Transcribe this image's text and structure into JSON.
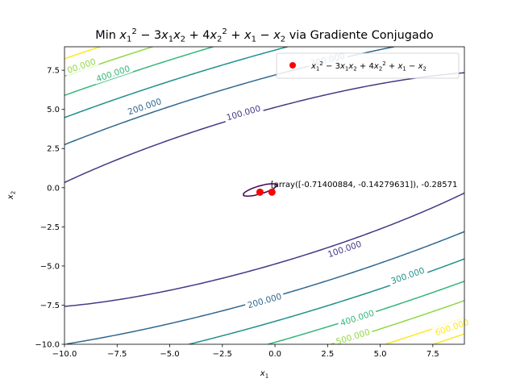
{
  "chart_data": {
    "type": "contour",
    "title_parts": [
      "Min ",
      "x",
      "1",
      "2",
      " − 3",
      "x",
      "1",
      "x",
      "2",
      " + 4",
      "x",
      "2",
      "2",
      " + ",
      "x",
      "1",
      " − ",
      "x",
      "2",
      " via Gradiente Conjugado"
    ],
    "xlabel": {
      "base": "x",
      "sub": "1"
    },
    "ylabel": {
      "base": "x",
      "sub": "2"
    },
    "xlim": [
      -10,
      9
    ],
    "ylim": [
      -10,
      9
    ],
    "xticks": [
      -10.0,
      -7.5,
      -5.0,
      -2.5,
      0.0,
      2.5,
      5.0,
      7.5
    ],
    "yticks": [
      -10.0,
      -7.5,
      -5.0,
      -2.5,
      0.0,
      2.5,
      5.0,
      7.5
    ],
    "xtick_labels": [
      "−10.0",
      "−7.5",
      "−5.0",
      "−2.5",
      "0.0",
      "2.5",
      "5.0",
      "7.5"
    ],
    "ytick_labels": [
      "−10.0",
      "−7.5",
      "−5.0",
      "−2.5",
      "0.0",
      "2.5",
      "5.0",
      "7.5"
    ],
    "function": {
      "a": 1,
      "b": -3,
      "c": 4,
      "d": 1,
      "e": -1
    },
    "levels": [
      0,
      100,
      200,
      300,
      400,
      500,
      600,
      700
    ],
    "level_colors": [
      "#440154",
      "#443983",
      "#31688e",
      "#21918c",
      "#35b779",
      "#90d743",
      "#fde725",
      "#fde725"
    ],
    "contour_labels": [
      {
        "text": "100.000",
        "x": -1.5,
        "y": 4.8
      },
      {
        "text": "200.000",
        "x": -6.2,
        "y": 5.2
      },
      {
        "text": "300.000",
        "x": 2.5,
        "y": 8.2
      },
      {
        "text": "400.000",
        "x": -7.7,
        "y": 7.3
      },
      {
        "text": "00.000",
        "x": -9.2,
        "y": 7.8
      },
      {
        "text": "100.000",
        "x": 3.3,
        "y": -3.9
      },
      {
        "text": "200.000",
        "x": -0.5,
        "y": -7.2
      },
      {
        "text": "300.000",
        "x": 6.3,
        "y": -5.6
      },
      {
        "text": "400.000",
        "x": 3.9,
        "y": -8.3
      },
      {
        "text": "500.000",
        "x": 3.7,
        "y": -9.5
      },
      {
        "text": "600.000",
        "x": 8.4,
        "y": -8.9
      }
    ],
    "points": [
      {
        "x": -0.714,
        "y": -0.2857
      },
      {
        "x": -0.143,
        "y": -0.2857
      }
    ],
    "point_color": "#ff0000",
    "annotation": {
      "text": "[array([-0.71400884, -0.14279631]), -0.28571",
      "x": -0.2,
      "y": 0.05
    },
    "legend": {
      "position": "upper-right",
      "label_parts": [
        "x",
        "1",
        "2",
        " − 3",
        "x",
        "1",
        "x",
        "2",
        " + 4",
        "x",
        "2",
        "2",
        " + ",
        "x",
        "1",
        " − ",
        "x",
        "2"
      ]
    }
  }
}
